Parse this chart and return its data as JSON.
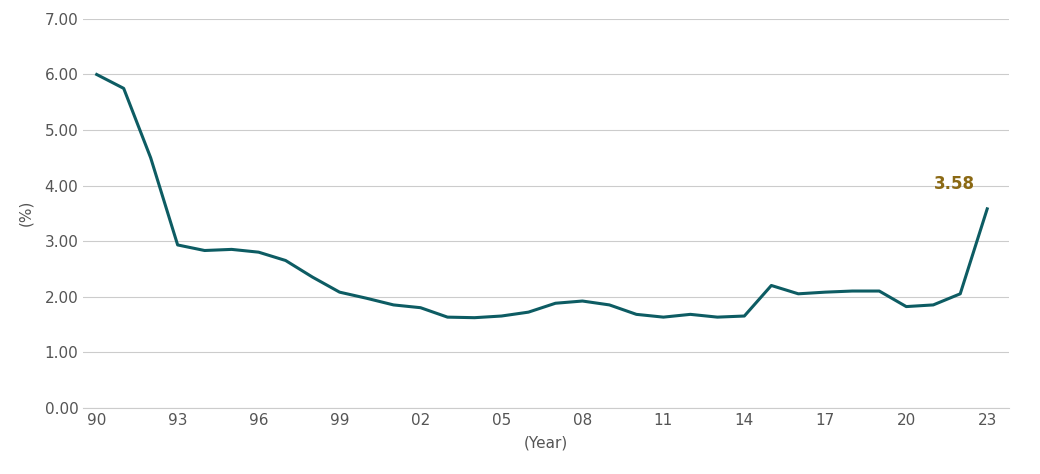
{
  "years": [
    1990,
    1991,
    1992,
    1993,
    1994,
    1995,
    1996,
    1997,
    1998,
    1999,
    2000,
    2001,
    2002,
    2003,
    2004,
    2005,
    2006,
    2007,
    2008,
    2009,
    2010,
    2011,
    2012,
    2013,
    2014,
    2015,
    2016,
    2017,
    2018,
    2019,
    2020,
    2021,
    2022,
    2023
  ],
  "values": [
    6.0,
    5.75,
    4.5,
    2.93,
    2.83,
    2.85,
    2.8,
    2.65,
    2.35,
    2.08,
    1.97,
    1.85,
    1.8,
    1.63,
    1.62,
    1.65,
    1.72,
    1.88,
    1.92,
    1.85,
    1.68,
    1.63,
    1.68,
    1.63,
    1.65,
    2.2,
    2.05,
    2.08,
    2.1,
    2.1,
    1.82,
    1.85,
    2.05,
    3.58
  ],
  "line_color": "#0d5c63",
  "line_width": 2.2,
  "ylabel": "(%)",
  "xlabel": "(Year)",
  "annotation_text": "3.58",
  "annotation_color": "#8B6914",
  "annotation_fontsize": 12,
  "annotation_fontweight": "bold",
  "ylim": [
    0.0,
    7.0
  ],
  "yticks": [
    0.0,
    1.0,
    2.0,
    3.0,
    4.0,
    5.0,
    6.0,
    7.0
  ],
  "ytick_labels": [
    "0.00",
    "1.00",
    "2.00",
    "3.00",
    "4.00",
    "5.00",
    "6.00",
    "7.00"
  ],
  "xtick_years": [
    1990,
    1993,
    1996,
    1999,
    2002,
    2005,
    2008,
    2011,
    2014,
    2017,
    2020,
    2023
  ],
  "xtick_labels": [
    "90",
    "93",
    "96",
    "99",
    "02",
    "05",
    "08",
    "11",
    "14",
    "17",
    "20",
    "23"
  ],
  "background_color": "#ffffff",
  "grid_color": "#cccccc",
  "tick_label_color": "#555555",
  "axis_label_color": "#555555",
  "tick_fontsize": 11,
  "label_fontsize": 11
}
